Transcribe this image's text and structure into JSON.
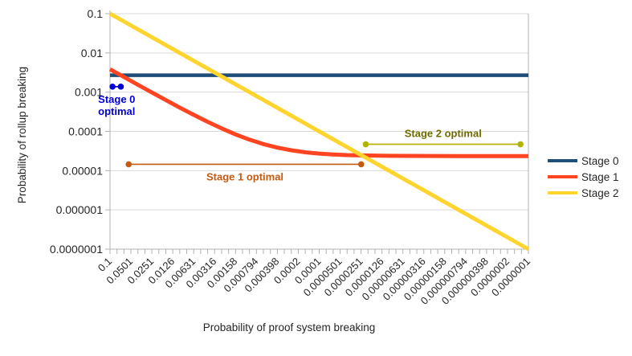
{
  "chart_data": {
    "type": "line",
    "title": "",
    "xlabel": "Probability of proof system breaking",
    "ylabel": "Probability of rollup breaking",
    "x_scale": "log-descending",
    "y_scale": "log",
    "x_range": [
      0.1,
      1e-07
    ],
    "y_range": [
      0.1,
      1e-07
    ],
    "grid": "horizontal-only",
    "legend_position": "right",
    "x_tick_labels": [
      "0.1",
      "0.0501",
      "0.0251",
      "0.0126",
      "0.00631",
      "0.00316",
      "0.00158",
      "0.000794",
      "0.000398",
      "0.0002",
      "0.0001",
      "0.0000501",
      "0.0000251",
      "0.0000126",
      "0.00000631",
      "0.00000316",
      "0.00000158",
      "0.000000794",
      "0.000000398",
      "0.0000002",
      "0.0000001"
    ],
    "y_tick_labels": [
      "0.1",
      "0.01",
      "0.001",
      "0.0001",
      "0.00001",
      "0.000001",
      "0.0000001"
    ],
    "series": [
      {
        "name": "Stage 0",
        "color": "#1F4E79",
        "points": [
          [
            0.1,
            0.0027
          ],
          [
            1e-07,
            0.0027
          ]
        ]
      },
      {
        "name": "Stage 1",
        "color": "#FF4422",
        "points": [
          [
            0.1,
            0.00383
          ],
          [
            0.0631,
            0.00243
          ],
          [
            0.0398,
            0.00154
          ],
          [
            0.0251,
            0.00098
          ],
          [
            0.0158,
            0.000626
          ],
          [
            0.01,
            0.000404
          ],
          [
            0.00631,
            0.000264
          ],
          [
            0.00398,
            0.000175
          ],
          [
            0.00251,
            0.000119
          ],
          [
            0.00158,
            8.37e-05
          ],
          [
            0.001,
            6.15e-05
          ],
          [
            0.000631,
            4.74e-05
          ],
          [
            0.000398,
            3.86e-05
          ],
          [
            0.000251,
            3.3e-05
          ],
          [
            0.000158,
            2.94e-05
          ],
          [
            0.0001,
            2.72e-05
          ],
          [
            6.31e-05,
            2.58e-05
          ],
          [
            3.98e-05,
            2.49e-05
          ],
          [
            2.51e-05,
            2.44e-05
          ],
          [
            1e-05,
            2.38e-05
          ],
          [
            1e-06,
            2.34e-05
          ],
          [
            1e-07,
            2.34e-05
          ]
        ]
      },
      {
        "name": "Stage 2",
        "color": "#FFD42E",
        "points": [
          [
            0.1,
            0.1
          ],
          [
            1e-07,
            1e-07
          ]
        ]
      }
    ],
    "annotations": [
      {
        "id": "stage-0-optimal",
        "label_lines": [
          "Stage 0",
          "optimal"
        ],
        "label_position": "below",
        "x_from": 0.092,
        "x_to": 0.07,
        "y": 0.00138,
        "line_color": "#0000D6",
        "text_color": "#0000D6"
      },
      {
        "id": "stage-1-optimal",
        "label_lines": [
          "Stage 1 optimal"
        ],
        "label_position": "below",
        "x_from": 0.054,
        "x_to": 2.5e-05,
        "y": 1.45e-05,
        "line_color": "#C55A11",
        "text_color": "#C55A11"
      },
      {
        "id": "stage-2-optimal",
        "label_lines": [
          "Stage 2 optimal"
        ],
        "label_position": "above",
        "x_from": 2.15e-05,
        "x_to": 1.3e-07,
        "y": 4.7e-05,
        "line_color": "#B3B300",
        "text_color": "#6E6E00"
      }
    ]
  }
}
